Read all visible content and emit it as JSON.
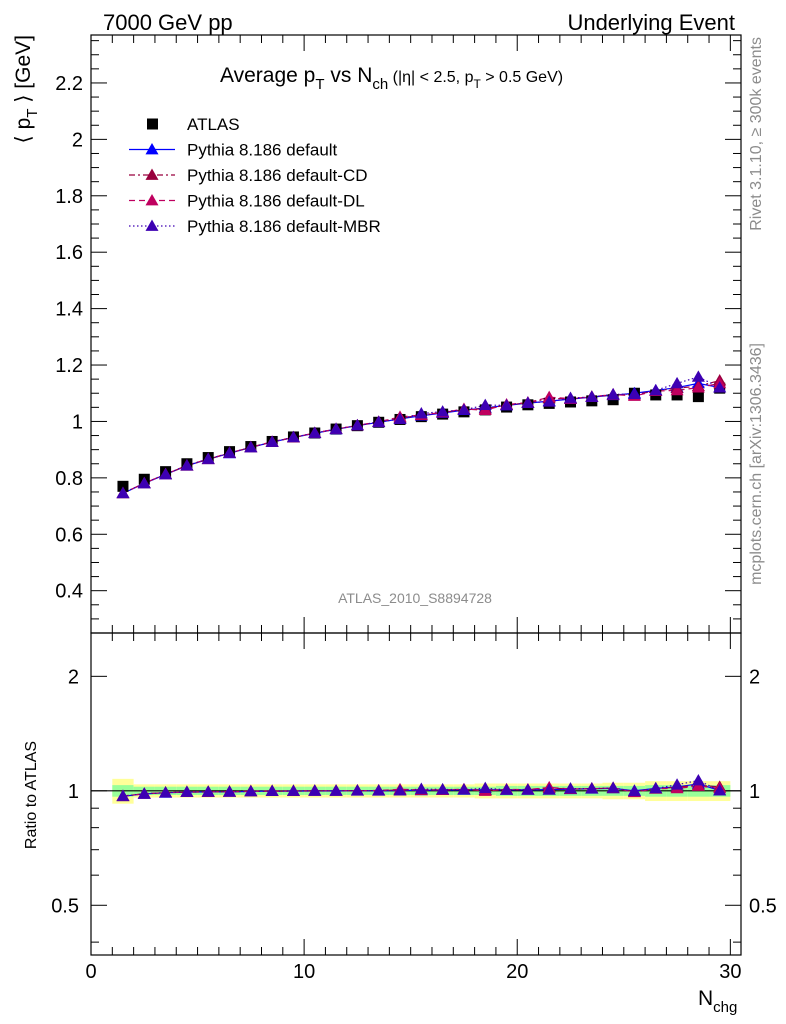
{
  "header": {
    "left": "7000 GeV pp",
    "right": "Underlying Event"
  },
  "side": {
    "rivet": "Rivet 3.1.10, ≥ 300k events",
    "mcplots": "mcplots.cern.ch [arXiv:1306.3436]"
  },
  "chart_data": {
    "type": "scatter",
    "title": "Average pT vs Nch (|η| < 2.5, pT > 0.5 GeV)",
    "title_parts": {
      "main": "Average p",
      "sub1": "T",
      "mid": " vs N",
      "sub2": "ch",
      "cut1": " (|η| < 2.5, p",
      "sub3": "T",
      "cut2": " > 0.5 GeV)"
    },
    "watermark": "ATLAS_2010_S8894728",
    "ylabel": "⟨ pT ⟩ [GeV]",
    "ylabel_parts": {
      "open": "⟨ p",
      "sub": "T",
      "close": " ⟩ [GeV]"
    },
    "xlabel": "Nchg",
    "xlabel_parts": {
      "main": "N",
      "sub": "chg"
    },
    "ratio_ylabel": "Ratio to ATLAS",
    "xlim": [
      0,
      30.5
    ],
    "ylim": [
      0.25,
      2.37
    ],
    "ratio_ylim": [
      0.37,
      2.6
    ],
    "ratio_log": true,
    "xticks": [
      "0",
      "10",
      "20",
      "30"
    ],
    "yticks": [
      "0.4",
      "0.6",
      "0.8",
      "1",
      "1.2",
      "1.4",
      "1.6",
      "1.8",
      "2",
      "2.2"
    ],
    "ratio_yticks": [
      "0.5",
      "1",
      "2"
    ],
    "legend_position": "top-left",
    "x": [
      1.5,
      2.5,
      3.5,
      4.5,
      5.5,
      6.5,
      7.5,
      8.5,
      9.5,
      10.5,
      11.5,
      12.5,
      13.5,
      14.5,
      15.5,
      16.5,
      17.5,
      18.5,
      19.5,
      20.5,
      21.5,
      22.5,
      23.5,
      24.5,
      25.5,
      26.5,
      27.5,
      28.5,
      29.5
    ],
    "series": [
      {
        "name": "ATLAS",
        "color": "#000000",
        "marker": "square",
        "values": [
          0.77,
          0.795,
          0.822,
          0.85,
          0.872,
          0.893,
          0.911,
          0.929,
          0.945,
          0.959,
          0.973,
          0.985,
          0.997,
          1.007,
          1.017,
          1.026,
          1.034,
          1.041,
          1.051,
          1.059,
          1.064,
          1.069,
          1.073,
          1.077,
          1.1,
          1.094,
          1.094,
          1.088,
          1.118
        ]
      },
      {
        "name": "Pythia 8.186 default",
        "color": "#0000ff",
        "marker": "triangle",
        "line": "solid",
        "values": [
          0.745,
          0.78,
          0.812,
          0.843,
          0.866,
          0.887,
          0.908,
          0.927,
          0.943,
          0.958,
          0.972,
          0.985,
          0.997,
          1.009,
          1.02,
          1.03,
          1.04,
          1.048,
          1.057,
          1.065,
          1.072,
          1.079,
          1.086,
          1.093,
          1.1,
          1.11,
          1.12,
          1.135,
          1.12
        ]
      },
      {
        "name": "Pythia 8.186 default-CD",
        "color": "#99003d",
        "marker": "triangle",
        "line": "dashdot",
        "values": [
          0.745,
          0.781,
          0.813,
          0.843,
          0.866,
          0.888,
          0.908,
          0.927,
          0.943,
          0.959,
          0.973,
          0.986,
          0.998,
          1.012,
          1.022,
          1.032,
          1.042,
          1.045,
          1.058,
          1.066,
          1.082,
          1.08,
          1.088,
          1.094,
          1.095,
          1.108,
          1.118,
          1.125,
          1.145
        ]
      },
      {
        "name": "Pythia 8.186 default-DL",
        "color": "#bf005f",
        "marker": "triangle",
        "line": "dashed",
        "values": [
          0.746,
          0.781,
          0.813,
          0.844,
          0.867,
          0.888,
          0.909,
          0.928,
          0.944,
          0.959,
          0.973,
          0.986,
          0.999,
          1.016,
          1.023,
          1.032,
          1.044,
          1.04,
          1.06,
          1.067,
          1.086,
          1.081,
          1.087,
          1.096,
          1.09,
          1.108,
          1.11,
          1.12,
          1.135
        ]
      },
      {
        "name": "Pythia 8.186 default-MBR",
        "color": "#3d00b3",
        "marker": "triangle",
        "line": "dotted",
        "values": [
          0.746,
          0.781,
          0.813,
          0.844,
          0.867,
          0.888,
          0.908,
          0.927,
          0.944,
          0.959,
          0.973,
          0.986,
          0.998,
          1.008,
          1.028,
          1.035,
          1.041,
          1.058,
          1.057,
          1.066,
          1.07,
          1.083,
          1.087,
          1.096,
          1.097,
          1.11,
          1.135,
          1.158,
          1.12
        ]
      }
    ],
    "ratio_bands": {
      "yellow_color": "#ffff99",
      "green_color": "#99ff99",
      "yellow_halfwidth": [
        0.075,
        0.04,
        0.04,
        0.04,
        0.04,
        0.04,
        0.04,
        0.04,
        0.04,
        0.04,
        0.04,
        0.04,
        0.04,
        0.04,
        0.04,
        0.04,
        0.04,
        0.045,
        0.045,
        0.045,
        0.045,
        0.045,
        0.045,
        0.05,
        0.05,
        0.06,
        0.06,
        0.06,
        0.06
      ],
      "green_halfwidth": [
        0.035,
        0.025,
        0.025,
        0.025,
        0.025,
        0.025,
        0.025,
        0.025,
        0.025,
        0.025,
        0.025,
        0.025,
        0.025,
        0.025,
        0.025,
        0.025,
        0.025,
        0.025,
        0.03,
        0.03,
        0.03,
        0.03,
        0.03,
        0.03,
        0.03,
        0.035,
        0.035,
        0.035,
        0.035
      ]
    }
  }
}
